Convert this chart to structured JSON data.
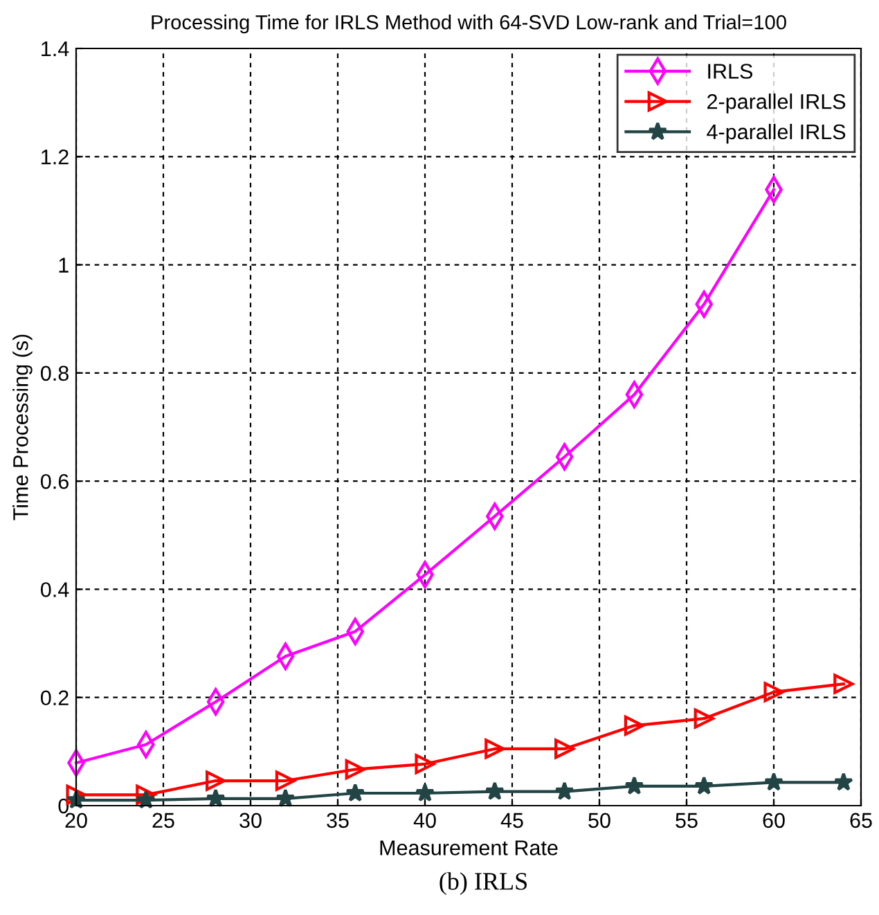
{
  "chart_data": {
    "type": "line",
    "title": "Processing Time for IRLS Method with 64-SVD Low-rank and Trial=100",
    "xlabel": "Measurement Rate",
    "ylabel": "Time Processing (s)",
    "annotations": [
      "(b) IRLS"
    ],
    "series": [
      {
        "name": "IRLS",
        "color": "#ff00ff",
        "marker": "diamond",
        "x": [
          20,
          24,
          28,
          32,
          36,
          40,
          44,
          48,
          52,
          56,
          60
        ],
        "values": [
          0.079,
          0.113,
          0.192,
          0.276,
          0.322,
          0.427,
          0.535,
          0.645,
          0.76,
          0.927,
          1.139
        ]
      },
      {
        "name": "2-parallel IRLS",
        "color": "#ff0000",
        "marker": "triangle",
        "x": [
          20,
          24,
          28,
          32,
          36,
          40,
          44,
          48,
          52,
          56,
          60,
          64
        ],
        "values": [
          0.02,
          0.02,
          0.046,
          0.046,
          0.067,
          0.077,
          0.105,
          0.105,
          0.148,
          0.161,
          0.21,
          0.225
        ]
      },
      {
        "name": "4-parallel IRLS",
        "color": "#224444",
        "marker": "star",
        "x": [
          20,
          24,
          28,
          32,
          36,
          40,
          44,
          48,
          52,
          56,
          60,
          64
        ],
        "values": [
          0.01,
          0.01,
          0.013,
          0.013,
          0.023,
          0.023,
          0.026,
          0.026,
          0.036,
          0.036,
          0.043,
          0.043
        ]
      }
    ],
    "xlim": [
      20,
      65
    ],
    "xticks": [
      20,
      25,
      30,
      35,
      40,
      45,
      50,
      55,
      60,
      65
    ],
    "ylim": [
      0,
      1.4
    ],
    "yticks": [
      0,
      0.2,
      0.4,
      0.6,
      0.8,
      1,
      1.2,
      1.4
    ],
    "grid": true,
    "legend": "top right",
    "line_style": "solid"
  }
}
